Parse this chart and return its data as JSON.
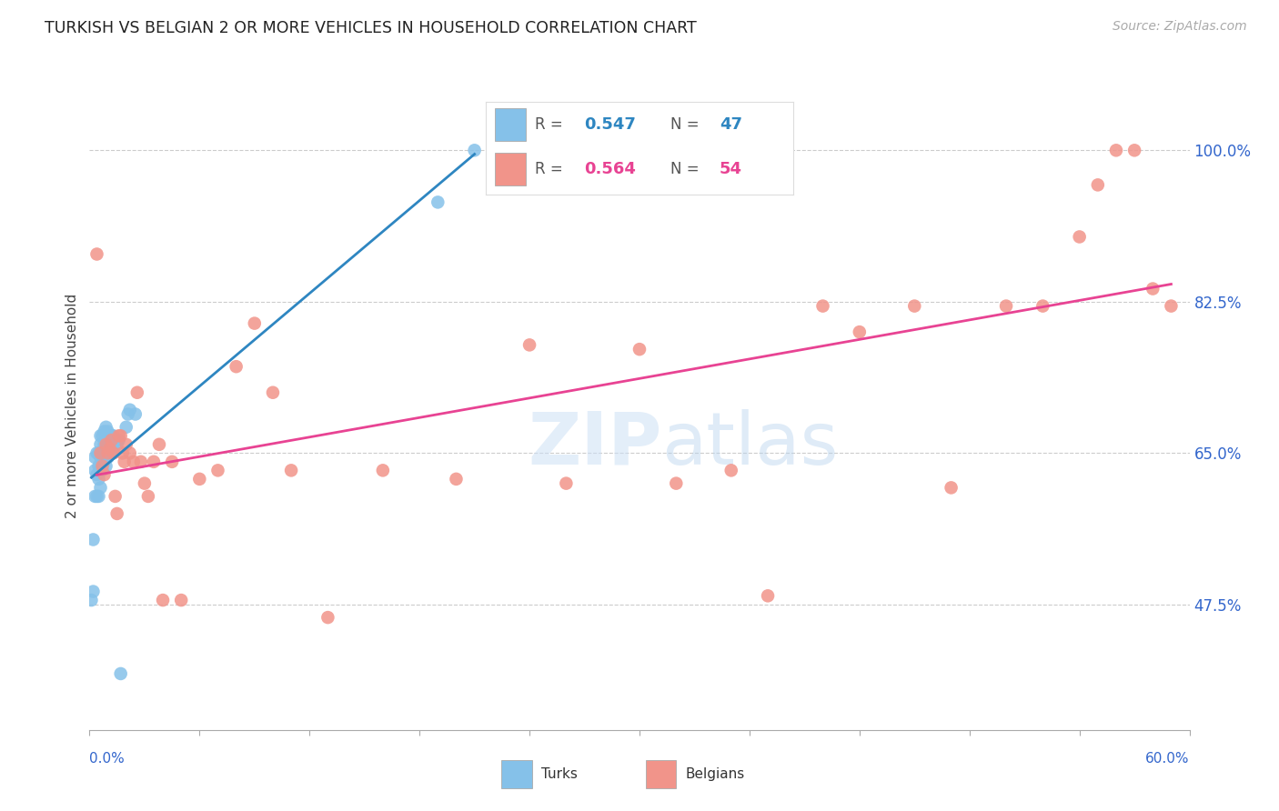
{
  "title": "TURKISH VS BELGIAN 2 OR MORE VEHICLES IN HOUSEHOLD CORRELATION CHART",
  "source": "Source: ZipAtlas.com",
  "ylabel": "2 or more Vehicles in Household",
  "ytick_labels": [
    "47.5%",
    "65.0%",
    "82.5%",
    "100.0%"
  ],
  "ytick_vals": [
    0.475,
    0.65,
    0.825,
    1.0
  ],
  "xlim": [
    0.0,
    0.6
  ],
  "ylim": [
    0.33,
    1.08
  ],
  "turks_color": "#85c1e9",
  "belgians_color": "#f1948a",
  "turks_line_color": "#2e86c1",
  "belgians_line_color": "#e84393",
  "legend_R_turks": "0.547",
  "legend_N_turks": "47",
  "legend_R_belgians": "0.564",
  "legend_N_belgians": "54",
  "turks_x": [
    0.001,
    0.002,
    0.002,
    0.003,
    0.003,
    0.003,
    0.004,
    0.004,
    0.004,
    0.005,
    0.005,
    0.005,
    0.005,
    0.006,
    0.006,
    0.006,
    0.006,
    0.006,
    0.007,
    0.007,
    0.007,
    0.008,
    0.008,
    0.008,
    0.009,
    0.009,
    0.009,
    0.009,
    0.01,
    0.01,
    0.01,
    0.011,
    0.011,
    0.012,
    0.012,
    0.013,
    0.013,
    0.014,
    0.015,
    0.016,
    0.017,
    0.02,
    0.021,
    0.022,
    0.025,
    0.19,
    0.21
  ],
  "turks_y": [
    0.48,
    0.49,
    0.55,
    0.6,
    0.63,
    0.645,
    0.6,
    0.625,
    0.65,
    0.6,
    0.62,
    0.635,
    0.65,
    0.61,
    0.63,
    0.645,
    0.66,
    0.67,
    0.63,
    0.65,
    0.67,
    0.64,
    0.66,
    0.675,
    0.635,
    0.65,
    0.665,
    0.68,
    0.645,
    0.66,
    0.675,
    0.65,
    0.67,
    0.65,
    0.67,
    0.655,
    0.67,
    0.665,
    0.66,
    0.665,
    0.395,
    0.68,
    0.695,
    0.7,
    0.695,
    0.94,
    1.0
  ],
  "belgians_x": [
    0.004,
    0.006,
    0.007,
    0.008,
    0.009,
    0.01,
    0.011,
    0.012,
    0.013,
    0.014,
    0.015,
    0.016,
    0.017,
    0.018,
    0.019,
    0.02,
    0.022,
    0.024,
    0.026,
    0.028,
    0.03,
    0.032,
    0.035,
    0.038,
    0.04,
    0.045,
    0.05,
    0.06,
    0.07,
    0.08,
    0.09,
    0.1,
    0.11,
    0.13,
    0.16,
    0.2,
    0.24,
    0.26,
    0.3,
    0.32,
    0.35,
    0.37,
    0.4,
    0.42,
    0.45,
    0.47,
    0.5,
    0.52,
    0.54,
    0.55,
    0.56,
    0.57,
    0.58,
    0.59
  ],
  "belgians_y": [
    0.88,
    0.65,
    0.635,
    0.625,
    0.66,
    0.65,
    0.655,
    0.665,
    0.65,
    0.6,
    0.58,
    0.67,
    0.67,
    0.65,
    0.64,
    0.66,
    0.65,
    0.64,
    0.72,
    0.64,
    0.615,
    0.6,
    0.64,
    0.66,
    0.48,
    0.64,
    0.48,
    0.62,
    0.63,
    0.75,
    0.8,
    0.72,
    0.63,
    0.46,
    0.63,
    0.62,
    0.775,
    0.615,
    0.77,
    0.615,
    0.63,
    0.485,
    0.82,
    0.79,
    0.82,
    0.61,
    0.82,
    0.82,
    0.9,
    0.96,
    1.0,
    1.0,
    0.84,
    0.82
  ]
}
